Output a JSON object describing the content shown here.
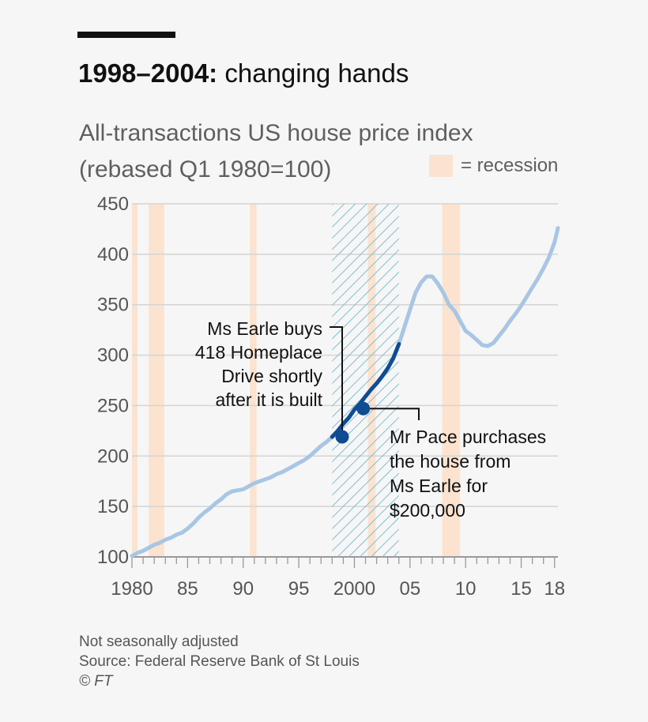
{
  "headline": {
    "bold": "1998–2004:",
    "rest": " changing hands"
  },
  "subtitle": {
    "line1": "All-transactions US house price index",
    "line2": "(rebased Q1 1980=100)"
  },
  "legend": {
    "label": "= recession",
    "color": "#fbe3d0"
  },
  "footer": {
    "note": "Not seasonally adjusted",
    "source": "Source: Federal Reserve Bank of St Louis",
    "credit": "© FT"
  },
  "colors": {
    "series": "#a8c6e4",
    "highlight": "#0f4c93",
    "hatch": "#7fbfd2",
    "grid": "#d4d4d4",
    "recession": "#fbe3d0"
  },
  "chart_data": {
    "type": "line",
    "title": "All-transactions US house price index (rebased Q1 1980=100)",
    "xlabel": "",
    "ylabel": "",
    "xlim": [
      1980,
      2018.3
    ],
    "ylim": [
      100,
      450
    ],
    "y_ticks": [
      100,
      150,
      200,
      250,
      300,
      350,
      400,
      450
    ],
    "y_tick_labels": [
      "100",
      "150",
      "200",
      "250",
      "300",
      "350",
      "400",
      "450"
    ],
    "x_ticks": [
      1980,
      1985,
      1990,
      1995,
      2000,
      2005,
      2010,
      2015,
      2018
    ],
    "x_tick_labels": [
      "1980",
      "85",
      "90",
      "95",
      "2000",
      "05",
      "10",
      "15",
      "18"
    ],
    "recessions": [
      [
        1980.0,
        1980.5
      ],
      [
        1981.5,
        1982.9
      ],
      [
        1990.6,
        1991.2
      ],
      [
        2001.2,
        2001.9
      ],
      [
        2007.9,
        2009.5
      ]
    ],
    "highlight_period": [
      1998,
      2004
    ],
    "series": [
      {
        "name": "House price index",
        "x": [
          1980.0,
          1980.5,
          1981.0,
          1981.5,
          1982.0,
          1982.5,
          1983.0,
          1983.5,
          1984.0,
          1984.5,
          1985.0,
          1985.5,
          1986.0,
          1986.5,
          1987.0,
          1987.5,
          1988.0,
          1988.5,
          1989.0,
          1989.5,
          1990.0,
          1990.5,
          1991.0,
          1991.5,
          1992.0,
          1992.5,
          1993.0,
          1993.5,
          1994.0,
          1994.5,
          1995.0,
          1995.5,
          1996.0,
          1996.5,
          1997.0,
          1997.5,
          1998.0,
          1998.5,
          1999.0,
          1999.5,
          2000.0,
          2000.5,
          2001.0,
          2001.5,
          2002.0,
          2002.5,
          2003.0,
          2003.5,
          2004.0,
          2004.5,
          2005.0,
          2005.5,
          2006.0,
          2006.5,
          2007.0,
          2007.5,
          2008.0,
          2008.5,
          2009.0,
          2009.5,
          2010.0,
          2010.5,
          2011.0,
          2011.5,
          2012.0,
          2012.5,
          2013.0,
          2013.5,
          2014.0,
          2014.5,
          2015.0,
          2015.5,
          2016.0,
          2016.5,
          2017.0,
          2017.5,
          2018.0,
          2018.3
        ],
        "values": [
          101,
          104,
          106,
          109,
          112,
          114,
          117,
          119,
          122,
          124,
          128,
          133,
          139,
          144,
          148,
          153,
          157,
          162,
          165,
          166,
          167,
          170,
          173,
          175,
          177,
          179,
          182,
          184,
          187,
          190,
          193,
          196,
          200,
          205,
          210,
          214,
          219,
          225,
          232,
          238,
          246,
          252,
          259,
          266,
          272,
          279,
          287,
          297,
          311,
          328,
          345,
          362,
          372,
          378,
          378,
          371,
          362,
          350,
          344,
          334,
          324,
          320,
          315,
          310,
          309,
          312,
          319,
          326,
          334,
          341,
          349,
          358,
          367,
          376,
          386,
          397,
          412,
          426
        ]
      }
    ],
    "points": [
      {
        "x": 1998.9,
        "y": 219,
        "label_lines": [
          "Ms Earle buys",
          "418 Homeplace",
          "Drive shortly",
          "after it is built"
        ]
      },
      {
        "x": 2000.8,
        "y": 247,
        "label_lines": [
          "Mr Pace purchases",
          "the house from",
          "Ms Earle for",
          "$200,000"
        ]
      }
    ]
  }
}
